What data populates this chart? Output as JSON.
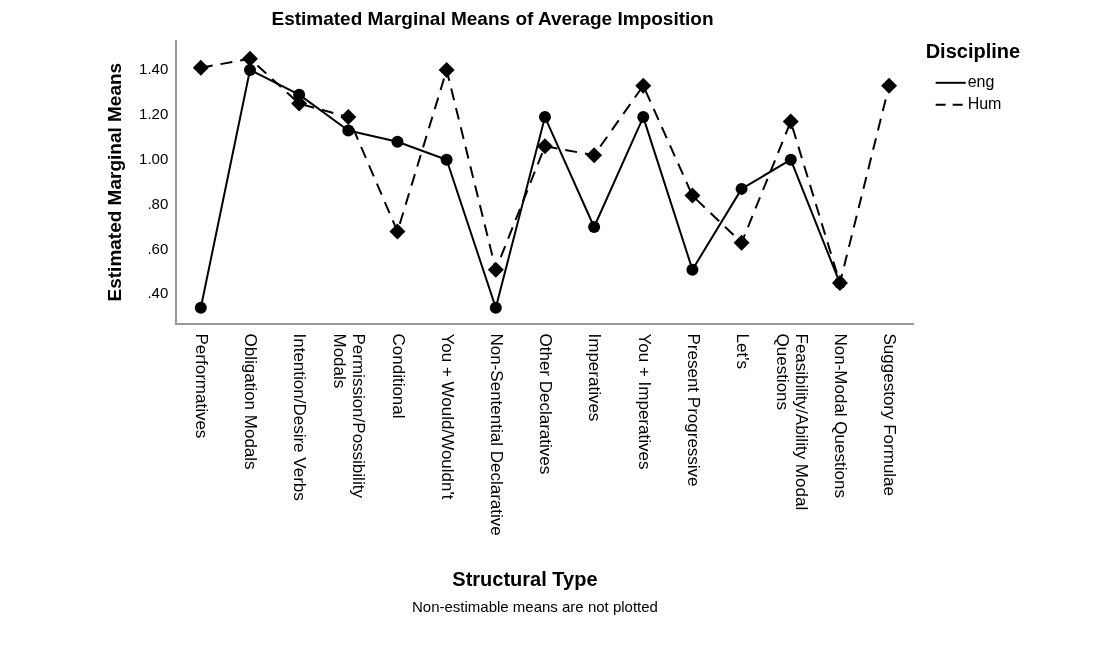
{
  "chart_data": {
    "type": "line",
    "title": "Estimated Marginal Means of Average Imposition",
    "xlabel": "Structural Type",
    "ylabel": "Estimated Marginal Means",
    "legend_title": "Discipline",
    "legend": "top right",
    "grid": false,
    "annotations": [
      "Non-estimable means are not plotted"
    ],
    "categories": [
      "Performatives",
      "Obligation Modals",
      "Intention/Desire Verbs",
      "Permission/Possibility Modals",
      "Conditional",
      "You + Would/Wouldn't",
      "Non-Sentential Declarative",
      "Other Declaratives",
      "Imperatives",
      "You + Imperatives",
      "Present Progressive",
      "Let's",
      "Feasibility/Ability Modal Questions",
      "Non-Modal Questions",
      "Suggestory Formulae"
    ],
    "ylim": [
      0.27,
      1.53
    ],
    "yticks": [
      {
        "value": 0.4,
        "label": ".40"
      },
      {
        "value": 0.6,
        "label": ".60"
      },
      {
        "value": 0.8,
        "label": ".80"
      },
      {
        "value": 1.0,
        "label": "1.00"
      },
      {
        "value": 1.2,
        "label": "1.20"
      },
      {
        "value": 1.4,
        "label": "1.40"
      }
    ],
    "series": [
      {
        "name": "eng",
        "color": "#000000",
        "marker": "circle",
        "line_style": "solid",
        "values": [
          0.34,
          1.4,
          1.29,
          1.13,
          1.08,
          1.0,
          0.34,
          1.19,
          0.7,
          1.19,
          0.51,
          0.87,
          1.0,
          0.45,
          null
        ]
      },
      {
        "name": "Hum",
        "color": "#000000",
        "marker": "diamond",
        "line_style": "dashed",
        "values": [
          1.41,
          1.45,
          1.25,
          1.19,
          0.68,
          1.4,
          0.51,
          1.06,
          1.02,
          1.33,
          0.84,
          0.63,
          1.17,
          0.45,
          1.33
        ]
      }
    ]
  }
}
